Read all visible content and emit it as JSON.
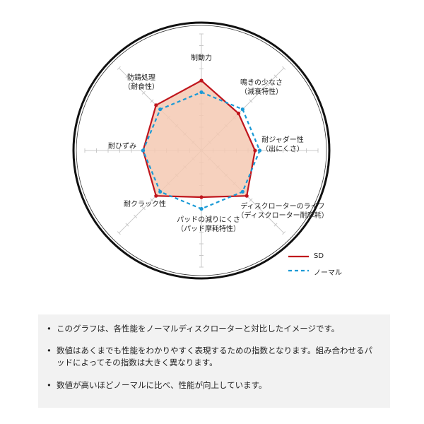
{
  "chart_data": {
    "type": "radar",
    "axes": [
      "制動力",
      "鳴きの少なさ（減衰特性）",
      "耐ジャダー性（出にくさ）",
      "ディスクローターのライフ（ディスクローター耐摩耗）",
      "パッドの減りにくさ（パッド摩耗特性）",
      "耐クラック性",
      "耐ひずみ",
      "防錆処理（耐食性）"
    ],
    "axis_labels": [
      [
        "制動力"
      ],
      [
        "鳴きの少なさ",
        "（減衰特性）"
      ],
      [
        "耐ジャダー性",
        "（出にくさ）"
      ],
      [
        "ディスクローターのライフ",
        "（ディスクローター耐摩耗）"
      ],
      [
        "パッドの減りにくさ",
        "（パッド摩耗特性）"
      ],
      [
        "耐クラック性"
      ],
      [
        "耐ひずみ"
      ],
      [
        "防錆処理",
        "（耐食性）"
      ]
    ],
    "range": [
      0,
      10
    ],
    "series": [
      {
        "name": "SD",
        "values": [
          6,
          4.5,
          4.6,
          5.5,
          4,
          5.5,
          5,
          5.5
        ],
        "color": "#c0161d",
        "fill": "#f5c9b3",
        "style": "solid"
      },
      {
        "name": "ノーマル",
        "values": [
          5,
          5,
          5,
          5,
          5,
          5,
          5,
          5
        ],
        "color": "#1a9ad6",
        "style": "dashed"
      }
    ],
    "legend": "bottom-right"
  },
  "notes": [
    "このグラフは、各性能をノーマルディスクローターと対比したイメージです。",
    "数値はあくまでも性能をわかりやすく表現するための指数となります。組み合わせるパッドによってその指数は大きく異なります。",
    "数値が高いほどノーマルに比べ、性能が向上しています。"
  ],
  "bullet": "•"
}
